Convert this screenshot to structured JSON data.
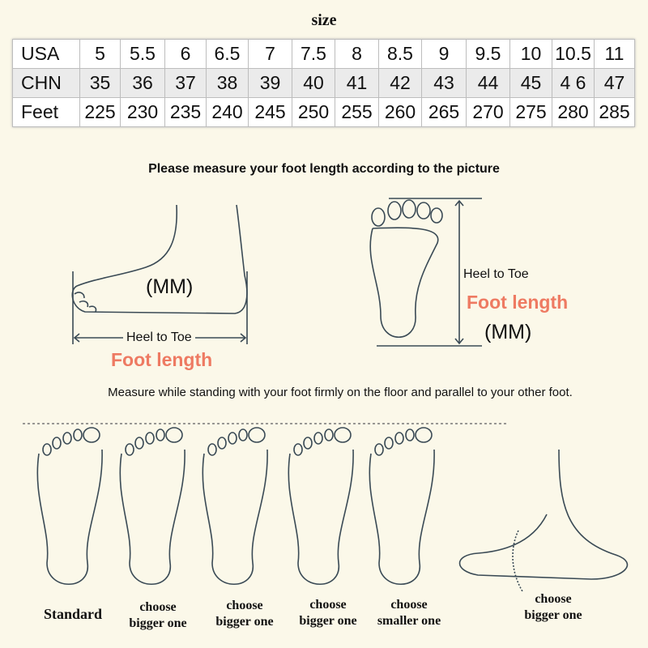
{
  "title": "size",
  "size_table": {
    "rows": [
      {
        "label": "USA",
        "values": [
          "5",
          "5.5",
          "6",
          "6.5",
          "7",
          "7.5",
          "8",
          "8.5",
          "9",
          "9.5",
          "10",
          "10.5",
          "11"
        ]
      },
      {
        "label": "CHN",
        "values": [
          "35",
          "36",
          "37",
          "38",
          "39",
          "40",
          "41",
          "42",
          "43",
          "44",
          "45",
          "4 6",
          "47"
        ]
      },
      {
        "label": "Feet",
        "values": [
          "225",
          "230",
          "235",
          "240",
          "245",
          "250",
          "255",
          "260",
          "265",
          "270",
          "275",
          "280",
          "285"
        ]
      }
    ]
  },
  "instruction": "Please measure your foot length according to the picture",
  "side_diagram": {
    "unit": "(MM)",
    "heel_to_toe": "Heel to Toe",
    "foot_length": "Foot length"
  },
  "sole_diagram": {
    "unit": "(MM)",
    "heel_to_toe": "Heel to Toe",
    "foot_length": "Foot length"
  },
  "standing_note": "Measure while standing with your foot firmly on the floor and parallel to your other foot.",
  "foot_types": [
    {
      "line1": "Standard",
      "line2": ""
    },
    {
      "line1": "choose",
      "line2": "bigger one"
    },
    {
      "line1": "choose",
      "line2": "bigger one"
    },
    {
      "line1": "choose",
      "line2": "bigger one"
    },
    {
      "line1": "choose",
      "line2": "smaller one"
    },
    {
      "line1": "choose",
      "line2": "bigger one"
    }
  ],
  "colors": {
    "background": "#fbf8e9",
    "accent": "#ee7a62"
  }
}
